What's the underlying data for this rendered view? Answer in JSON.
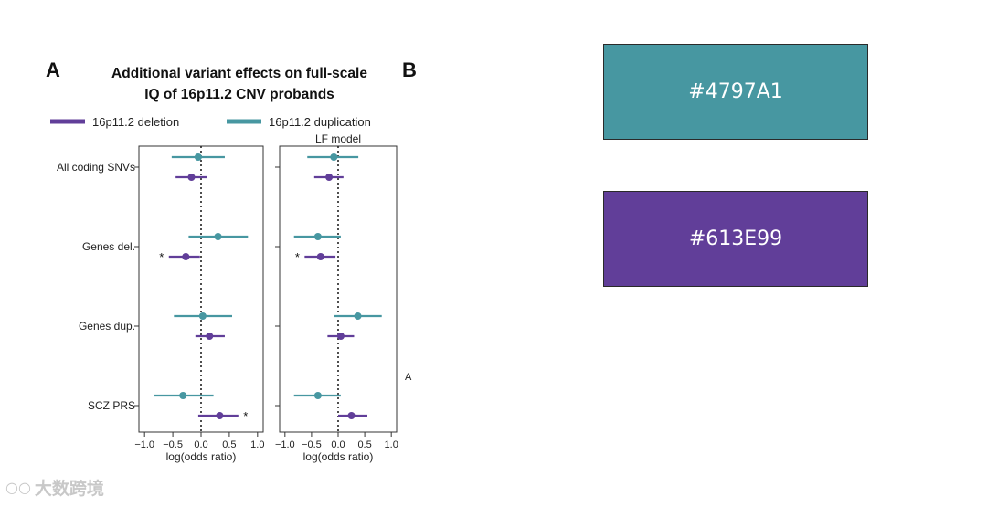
{
  "figure": {
    "panel_letter": "A",
    "next_panel_letter": "B",
    "stray_letter": "A",
    "watermark_text": "大数跨境",
    "watermark_icon": "wechat-logo-icon"
  },
  "swatches": [
    {
      "hex": "#4797A1",
      "label": "#4797A1"
    },
    {
      "hex": "#613E99",
      "label": "#613E99"
    }
  ],
  "chart_data": {
    "type": "forest",
    "title_lines": [
      "Additional variant effects on full-scale",
      "IQ of 16p11.2 CNV probands"
    ],
    "legend": [
      {
        "name": "16p11.2 deletion",
        "color": "#613E99"
      },
      {
        "name": "16p11.2 duplication",
        "color": "#4797A1"
      }
    ],
    "categories": [
      "All coding SNVs",
      "Genes del.",
      "Genes dup.",
      "SCZ PRS"
    ],
    "xlabel": "log(odds ratio)",
    "xlim": [
      -1.1,
      1.1
    ],
    "xticks": [
      -1.0,
      -0.5,
      0.0,
      0.5,
      1.0
    ],
    "tick_labels": [
      "−1.0",
      "−0.5",
      "0.0",
      "0.5",
      "1.0"
    ],
    "reference_line": 0,
    "panels": [
      {
        "subtitle": "",
        "series": [
          {
            "name": "16p11.2 duplication",
            "color": "#4797A1",
            "estimates": [
              -0.05,
              0.3,
              0.03,
              -0.32
            ],
            "lower": [
              -0.52,
              -0.22,
              -0.48,
              -0.83
            ],
            "upper": [
              0.42,
              0.83,
              0.55,
              0.22
            ],
            "significant": [
              false,
              false,
              false,
              false
            ]
          },
          {
            "name": "16p11.2 deletion",
            "color": "#613E99",
            "estimates": [
              -0.17,
              -0.27,
              0.15,
              0.33
            ],
            "lower": [
              -0.45,
              -0.57,
              -0.1,
              -0.05
            ],
            "upper": [
              0.1,
              -0.02,
              0.42,
              0.66
            ],
            "significant": [
              false,
              true,
              false,
              true
            ]
          }
        ]
      },
      {
        "subtitle": "LF model",
        "series": [
          {
            "name": "16p11.2 duplication",
            "color": "#4797A1",
            "estimates": [
              -0.08,
              -0.38,
              0.37,
              -0.38
            ],
            "lower": [
              -0.58,
              -0.83,
              -0.07,
              -0.83
            ],
            "upper": [
              0.38,
              0.05,
              0.82,
              0.05
            ],
            "significant": [
              false,
              false,
              false,
              false
            ]
          },
          {
            "name": "16p11.2 deletion",
            "color": "#613E99",
            "estimates": [
              -0.17,
              -0.33,
              0.05,
              0.25
            ],
            "lower": [
              -0.45,
              -0.63,
              -0.2,
              0.0
            ],
            "upper": [
              0.1,
              -0.05,
              0.3,
              0.55
            ],
            "significant": [
              false,
              true,
              false,
              false
            ]
          }
        ]
      }
    ]
  }
}
